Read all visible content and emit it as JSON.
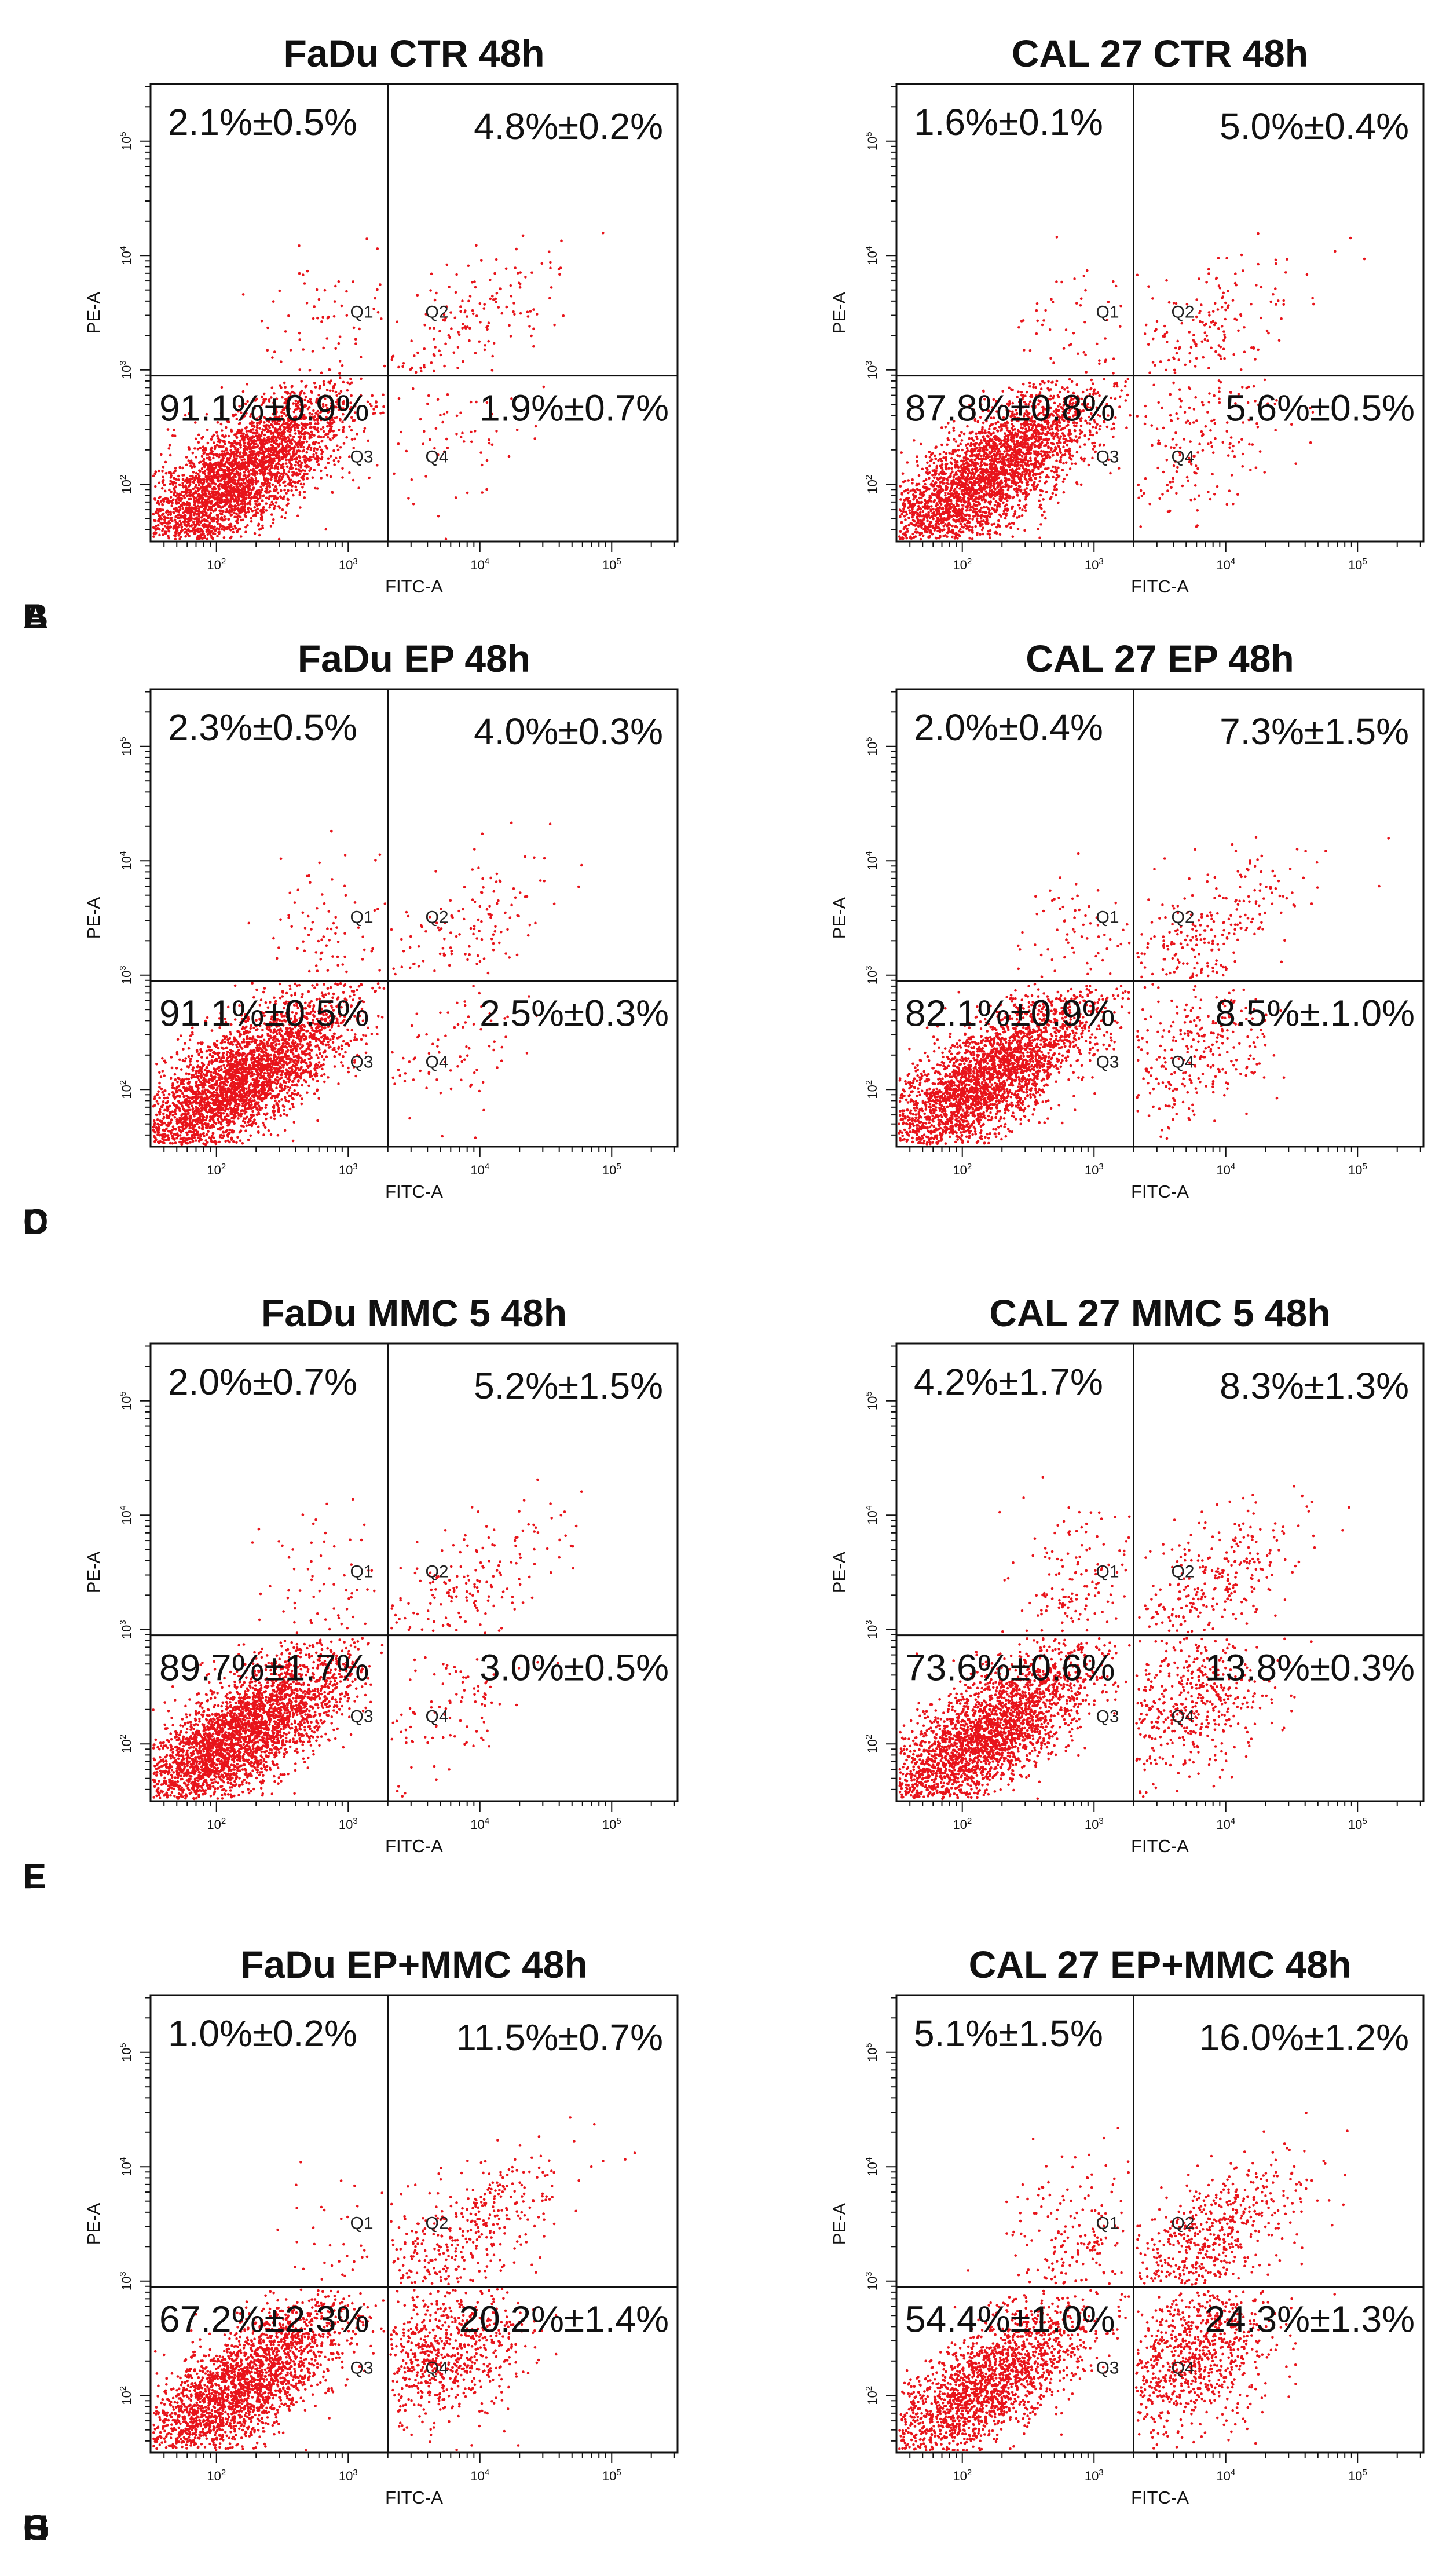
{
  "figure": {
    "x_axis_label": "FITC-A",
    "y_axis_label": "PE-A",
    "quadrant_names": [
      "Q1",
      "Q2",
      "Q3",
      "Q4"
    ],
    "tick_labels": [
      "10",
      "10",
      "10",
      "10"
    ],
    "tick_exponents": [
      "2",
      "3",
      "4",
      "5"
    ],
    "dot_color": "#e8141b"
  },
  "chart_data": [
    {
      "type": "scatter",
      "letter": "A",
      "title": "FaDu CTR 48h",
      "xlabel": "FITC-A",
      "ylabel": "PE-A",
      "xlim": [
        1.5,
        5.5
      ],
      "ylim": [
        1.5,
        5.5
      ],
      "x_gate": 3.3,
      "y_gate": 2.95,
      "quadrants": {
        "q1": "2.1%±0.5%",
        "q2": "4.8%±0.2%",
        "q3": "91.1%±0.9%",
        "q4": "1.9%±0.7%"
      }
    },
    {
      "type": "scatter",
      "letter": "B",
      "title": "CAL 27 CTR 48h",
      "xlabel": "FITC-A",
      "ylabel": "PE-A",
      "xlim": [
        1.5,
        5.5
      ],
      "ylim": [
        1.5,
        5.5
      ],
      "x_gate": 3.3,
      "y_gate": 2.95,
      "quadrants": {
        "q1": "1.6%±0.1%",
        "q2": "5.0%±0.4%",
        "q3": "87.8%±0.8%",
        "q4": "5.6%±0.5%"
      }
    },
    {
      "type": "scatter",
      "letter": "C",
      "title": "FaDu EP 48h",
      "xlabel": "FITC-A",
      "ylabel": "PE-A",
      "xlim": [
        1.5,
        5.5
      ],
      "ylim": [
        1.5,
        5.5
      ],
      "x_gate": 3.3,
      "y_gate": 2.95,
      "quadrants": {
        "q1": "2.3%±0.5%",
        "q2": "4.0%±0.3%",
        "q3": "91.1%±0.5%",
        "q4": "2.5%±0.3%"
      }
    },
    {
      "type": "scatter",
      "letter": "D",
      "title": "CAL 27 EP 48h",
      "xlabel": "FITC-A",
      "ylabel": "PE-A",
      "xlim": [
        1.5,
        5.5
      ],
      "ylim": [
        1.5,
        5.5
      ],
      "x_gate": 3.3,
      "y_gate": 2.95,
      "quadrants": {
        "q1": "2.0%±0.4%",
        "q2": "7.3%±1.5%",
        "q3": "82.1%±0.9%",
        "q4": "8.5%±.1.0%"
      }
    },
    {
      "type": "scatter",
      "letter": "E",
      "title": "FaDu MMC 5 48h",
      "xlabel": "FITC-A",
      "ylabel": "PE-A",
      "xlim": [
        1.5,
        5.5
      ],
      "ylim": [
        1.5,
        5.5
      ],
      "x_gate": 3.3,
      "y_gate": 2.95,
      "quadrants": {
        "q1": "2.0%±0.7%",
        "q2": "5.2%±1.5%",
        "q3": "89.7%±1.7%",
        "q4": "3.0%±0.5%"
      }
    },
    {
      "type": "scatter",
      "letter": "F",
      "title": "CAL 27 MMC 5 48h",
      "xlabel": "FITC-A",
      "ylabel": "PE-A",
      "xlim": [
        1.5,
        5.5
      ],
      "ylim": [
        1.5,
        5.5
      ],
      "x_gate": 3.3,
      "y_gate": 2.95,
      "quadrants": {
        "q1": "4.2%±1.7%",
        "q2": "8.3%±1.3%",
        "q3": "73.6%±0.6%",
        "q4": "13.8%±0.3%"
      }
    },
    {
      "type": "scatter",
      "letter": "G",
      "title": "FaDu EP+MMC 48h",
      "xlabel": "FITC-A",
      "ylabel": "PE-A",
      "xlim": [
        1.5,
        5.5
      ],
      "ylim": [
        1.5,
        5.5
      ],
      "x_gate": 3.3,
      "y_gate": 2.95,
      "quadrants": {
        "q1": "1.0%±0.2%",
        "q2": "11.5%±0.7%",
        "q3": "67.2%±2.3%",
        "q4": "20.2%±1.4%"
      }
    },
    {
      "type": "scatter",
      "letter": "H",
      "title": "CAL 27 EP+MMC 48h",
      "xlabel": "FITC-A",
      "ylabel": "PE-A",
      "xlim": [
        1.5,
        5.5
      ],
      "ylim": [
        1.5,
        5.5
      ],
      "x_gate": 3.3,
      "y_gate": 2.95,
      "quadrants": {
        "q1": "5.1%±1.5%",
        "q2": "16.0%±1.2%",
        "q3": "54.4%±1.0%",
        "q4": "24.3%±1.3%"
      }
    }
  ]
}
